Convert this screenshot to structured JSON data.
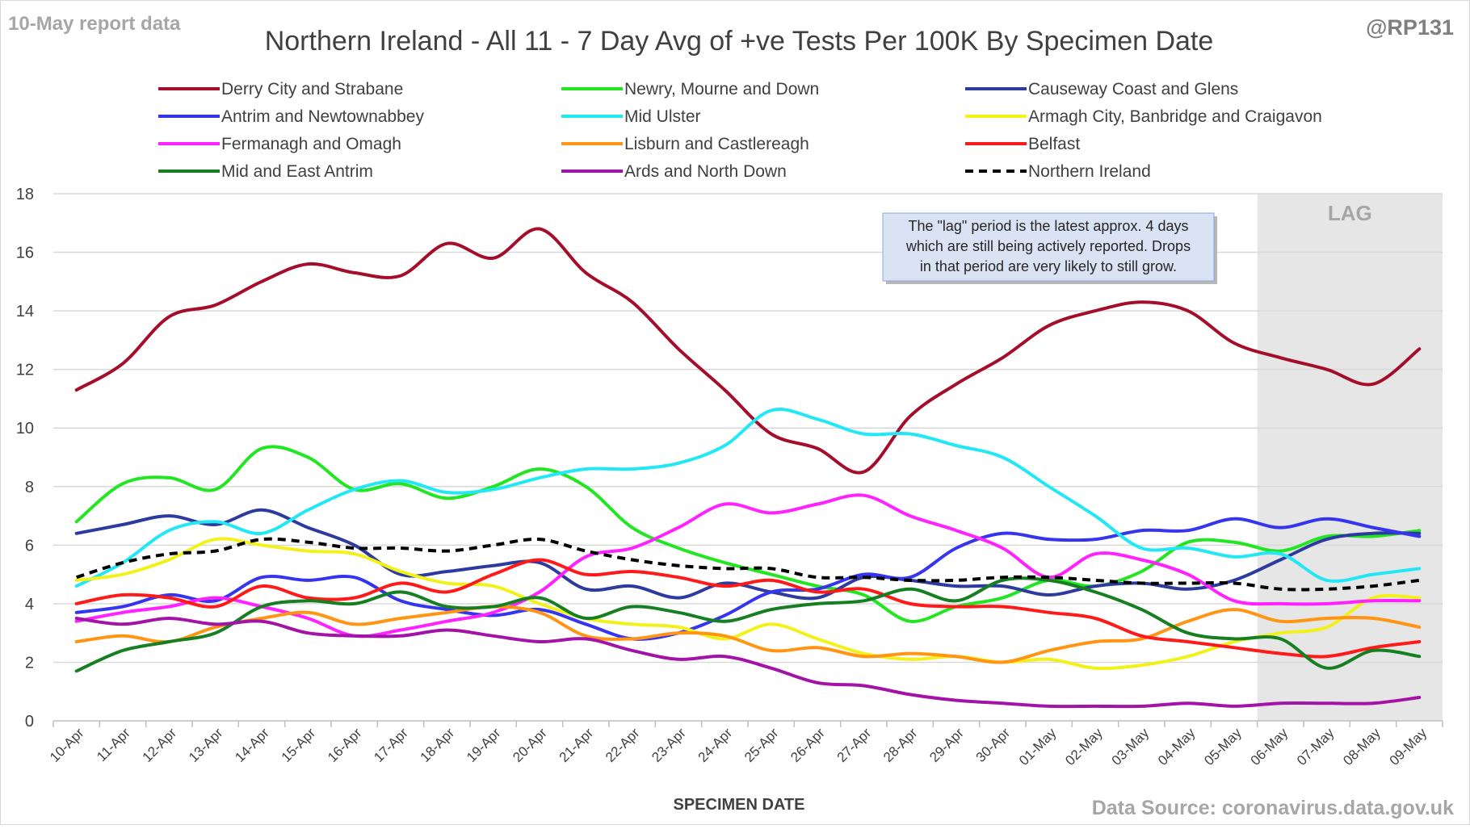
{
  "header": {
    "report_label": "10-May report data",
    "handle": "@RP131"
  },
  "footer": {
    "source": "Data Source: coronavirus.data.gov.uk"
  },
  "annotation": {
    "lines": [
      "The \"lag\" period is the latest approx. 4 days",
      "which are still being actively reported.  Drops",
      "in that period are very likely to still grow."
    ]
  },
  "chart_data": {
    "type": "line",
    "title": "Northern Ireland - All 11 - 7 Day Avg of +ve Tests Per 100K By Specimen Date",
    "xlabel": "SPECIMEN DATE",
    "ylabel": "",
    "ylim": [
      0,
      18
    ],
    "yticks": [
      0,
      2,
      4,
      6,
      8,
      10,
      12,
      14,
      16,
      18
    ],
    "grid": true,
    "legend_position": "top",
    "lag": {
      "label": "LAG",
      "start": "06-May",
      "end": "09-May",
      "color": "#e6e6e6"
    },
    "x": [
      "10-Apr",
      "11-Apr",
      "12-Apr",
      "13-Apr",
      "14-Apr",
      "15-Apr",
      "16-Apr",
      "17-Apr",
      "18-Apr",
      "19-Apr",
      "20-Apr",
      "21-Apr",
      "22-Apr",
      "23-Apr",
      "24-Apr",
      "25-Apr",
      "26-Apr",
      "27-Apr",
      "28-Apr",
      "29-Apr",
      "30-Apr",
      "01-May",
      "02-May",
      "03-May",
      "04-May",
      "05-May",
      "06-May",
      "07-May",
      "08-May",
      "09-May"
    ],
    "series": [
      {
        "name": "Derry City and Strabane",
        "color": "#a50e2a",
        "dashed": false,
        "values": [
          11.3,
          12.2,
          13.8,
          14.2,
          15.0,
          15.6,
          15.3,
          15.2,
          16.3,
          15.8,
          16.8,
          15.3,
          14.3,
          12.7,
          11.3,
          9.8,
          9.3,
          8.5,
          10.4,
          11.5,
          12.4,
          13.5,
          14.0,
          14.3,
          14.0,
          12.9,
          12.4,
          12.0,
          11.5,
          12.7
        ]
      },
      {
        "name": "Newry, Mourne and Down",
        "color": "#22e622",
        "dashed": false,
        "values": [
          6.8,
          8.1,
          8.3,
          7.9,
          9.3,
          9.0,
          7.9,
          8.1,
          7.6,
          8.0,
          8.6,
          8.0,
          6.6,
          5.9,
          5.4,
          5.0,
          4.6,
          4.3,
          3.4,
          3.9,
          4.2,
          4.8,
          4.6,
          5.1,
          6.1,
          6.1,
          5.8,
          6.3,
          6.3,
          6.5
        ]
      },
      {
        "name": "Causeway Coast and Glens",
        "color": "#2e3b9e",
        "dashed": false,
        "values": [
          6.4,
          6.7,
          7.0,
          6.7,
          7.2,
          6.6,
          6.0,
          5.0,
          5.1,
          5.3,
          5.4,
          4.5,
          4.6,
          4.2,
          4.7,
          4.4,
          4.2,
          4.9,
          4.8,
          4.6,
          4.6,
          4.3,
          4.6,
          4.7,
          4.5,
          4.8,
          5.5,
          6.2,
          6.4,
          6.4
        ]
      },
      {
        "name": "Antrim and Newtownabbey",
        "color": "#3535f0",
        "dashed": false,
        "values": [
          3.7,
          3.9,
          4.3,
          4.1,
          4.9,
          4.8,
          4.9,
          4.1,
          3.8,
          3.6,
          3.8,
          3.3,
          2.8,
          3.0,
          3.6,
          4.4,
          4.5,
          5.0,
          4.9,
          5.9,
          6.4,
          6.2,
          6.2,
          6.5,
          6.5,
          6.9,
          6.6,
          6.9,
          6.6,
          6.3
        ]
      },
      {
        "name": "Mid Ulster",
        "color": "#22e8f5",
        "dashed": false,
        "values": [
          4.6,
          5.4,
          6.5,
          6.8,
          6.4,
          7.2,
          7.9,
          8.2,
          7.8,
          7.9,
          8.3,
          8.6,
          8.6,
          8.8,
          9.4,
          10.6,
          10.3,
          9.8,
          9.8,
          9.4,
          9.0,
          8.0,
          7.0,
          5.9,
          5.9,
          5.6,
          5.7,
          4.8,
          5.0,
          5.2
        ]
      },
      {
        "name": "Armagh City, Banbridge and Craigavon",
        "color": "#f2f21a",
        "dashed": false,
        "values": [
          4.8,
          5.0,
          5.5,
          6.2,
          6.0,
          5.8,
          5.7,
          5.1,
          4.7,
          4.6,
          4.0,
          3.5,
          3.3,
          3.2,
          2.8,
          3.3,
          2.8,
          2.3,
          2.1,
          2.2,
          2.0,
          2.1,
          1.8,
          1.9,
          2.2,
          2.7,
          3.0,
          3.2,
          4.2,
          4.2
        ]
      },
      {
        "name": "Fermanagh and Omagh",
        "color": "#ff22ff",
        "dashed": false,
        "values": [
          3.4,
          3.7,
          3.9,
          4.2,
          3.9,
          3.5,
          2.9,
          3.1,
          3.4,
          3.7,
          4.4,
          5.6,
          5.9,
          6.6,
          7.4,
          7.1,
          7.4,
          7.7,
          7.0,
          6.5,
          5.9,
          4.9,
          5.7,
          5.5,
          5.0,
          4.1,
          4.0,
          4.0,
          4.1,
          4.1
        ]
      },
      {
        "name": "Lisburn and Castlereagh",
        "color": "#ff9512",
        "dashed": false,
        "values": [
          2.7,
          2.9,
          2.7,
          3.2,
          3.5,
          3.7,
          3.3,
          3.5,
          3.7,
          3.9,
          3.7,
          2.9,
          2.8,
          3.0,
          2.9,
          2.4,
          2.5,
          2.2,
          2.3,
          2.2,
          2.0,
          2.4,
          2.7,
          2.8,
          3.4,
          3.8,
          3.4,
          3.5,
          3.5,
          3.2
        ]
      },
      {
        "name": "Belfast",
        "color": "#ff1a1a",
        "dashed": false,
        "values": [
          4.0,
          4.3,
          4.2,
          3.9,
          4.6,
          4.2,
          4.2,
          4.7,
          4.4,
          5.0,
          5.5,
          5.0,
          5.1,
          4.9,
          4.6,
          4.8,
          4.4,
          4.5,
          4.0,
          3.9,
          3.9,
          3.7,
          3.5,
          2.9,
          2.7,
          2.5,
          2.3,
          2.2,
          2.5,
          2.7
        ]
      },
      {
        "name": "Mid and East Antrim",
        "color": "#157f21",
        "dashed": false,
        "values": [
          1.7,
          2.4,
          2.7,
          3.0,
          3.9,
          4.1,
          4.0,
          4.4,
          3.9,
          3.9,
          4.2,
          3.5,
          3.9,
          3.7,
          3.4,
          3.8,
          4.0,
          4.1,
          4.5,
          4.1,
          4.8,
          4.8,
          4.4,
          3.8,
          3.0,
          2.8,
          2.8,
          1.8,
          2.4,
          2.2
        ]
      },
      {
        "name": "Ards and North Down",
        "color": "#a313a8",
        "dashed": false,
        "values": [
          3.5,
          3.3,
          3.5,
          3.3,
          3.4,
          3.0,
          2.9,
          2.9,
          3.1,
          2.9,
          2.7,
          2.8,
          2.4,
          2.1,
          2.2,
          1.8,
          1.3,
          1.2,
          0.9,
          0.7,
          0.6,
          0.5,
          0.5,
          0.5,
          0.6,
          0.5,
          0.6,
          0.6,
          0.6,
          0.8
        ]
      },
      {
        "name": "Northern Ireland",
        "color": "#000000",
        "dashed": true,
        "values": [
          4.9,
          5.4,
          5.7,
          5.8,
          6.2,
          6.1,
          5.9,
          5.9,
          5.8,
          6.0,
          6.2,
          5.8,
          5.5,
          5.3,
          5.2,
          5.2,
          4.9,
          4.9,
          4.8,
          4.8,
          4.9,
          4.9,
          4.8,
          4.7,
          4.7,
          4.7,
          4.5,
          4.5,
          4.6,
          4.8
        ]
      }
    ]
  }
}
